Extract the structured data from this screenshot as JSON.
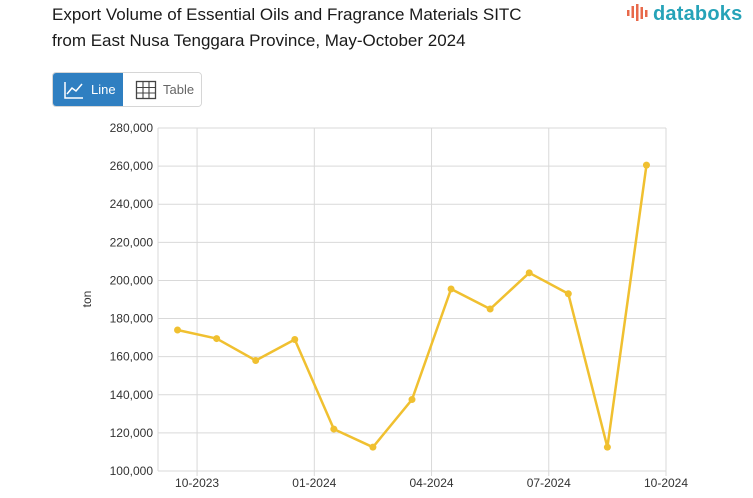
{
  "header": {
    "title_line1": "Export Volume of Essential Oils and Fragrance Materials SITC",
    "title_line2": "from East Nusa Tenggara Province, May-October 2024",
    "brand": "databoks"
  },
  "view_toggle": {
    "line_label": "Line",
    "table_label": "Table",
    "selected": "Line"
  },
  "colors": {
    "series": "#F0C030",
    "accent": "#2F7FC1",
    "brand": "#26A3B8",
    "grid": "#D9D9D9"
  },
  "icons": {
    "line": "line-chart-icon",
    "table": "table-grid-icon",
    "brand": "databoks-logo-icon"
  },
  "chart_data": {
    "type": "line",
    "title": "",
    "ylabel": "ton",
    "xlabel": "",
    "ylim": [
      100000,
      280000
    ],
    "yticks": [
      100000,
      120000,
      140000,
      160000,
      180000,
      200000,
      220000,
      240000,
      260000,
      280000
    ],
    "ytick_labels": [
      "100,000",
      "120,000",
      "140,000",
      "160,000",
      "180,000",
      "200,000",
      "220,000",
      "240,000",
      "260,000",
      "280,000"
    ],
    "xtick_labels": [
      "10-2023",
      "01-2024",
      "04-2024",
      "07-2024",
      "10-2024"
    ],
    "grid": true,
    "x": [
      "10-2023",
      "11-2023",
      "12-2023",
      "01-2024",
      "02-2024",
      "03-2024",
      "04-2024",
      "05-2024",
      "06-2024",
      "07-2024",
      "08-2024",
      "09-2024",
      "10-2024"
    ],
    "series": [
      {
        "values": [
          174000,
          169500,
          158000,
          169000,
          122000,
          112500,
          137500,
          195500,
          185000,
          204000,
          193000,
          112500,
          260500
        ]
      }
    ]
  }
}
